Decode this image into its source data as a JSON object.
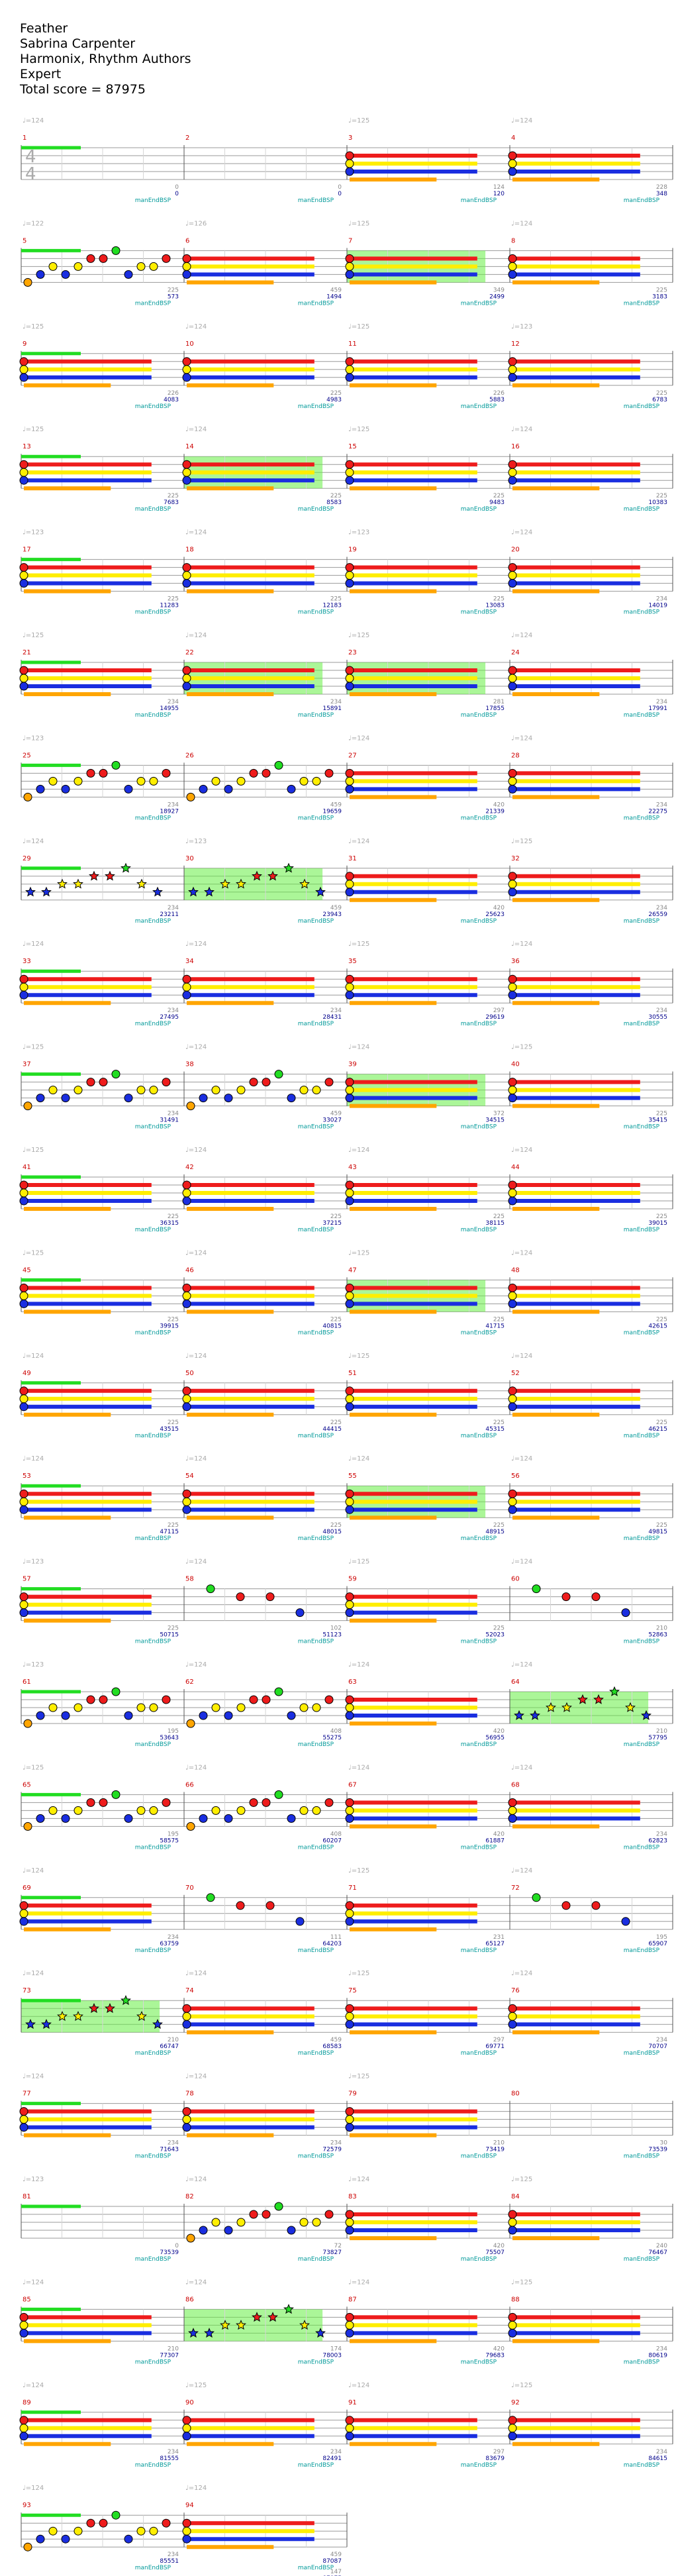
{
  "song": {
    "title": "Feather",
    "artist": "Sabrina Carpenter",
    "charter": "Harmonix, Rhythm Authors",
    "difficulty": "Expert",
    "total_score_label": "Total score = 87975"
  },
  "time_signature": {
    "numerator": "4",
    "denominator": "4"
  },
  "colors": {
    "green": "#22dd22",
    "red": "#ee1c1c",
    "yellow": "#ffee00",
    "blue": "#1a2ee0",
    "orange": "#ffa500",
    "star_power": "#66ee44",
    "measure_number": "#cc0000",
    "bpm_marker": "#aaaaaa",
    "score": "#00008b",
    "section": "#009999"
  },
  "legend": {
    "bpm_prefix": "♩=",
    "section_label": "manEndBSP"
  },
  "measures": [
    {
      "n": "1",
      "bpm": "124",
      "score": "0",
      "beat": "0",
      "sp": false,
      "pattern": "rest"
    },
    {
      "n": "2",
      "bpm": "",
      "score": "0",
      "beat": "0",
      "sp": false,
      "pattern": "rest"
    },
    {
      "n": "3",
      "bpm": "125",
      "score": "120",
      "beat": "124",
      "sp": false,
      "pattern": "sustain"
    },
    {
      "n": "4",
      "bpm": "124",
      "score": "348",
      "beat": "228",
      "sp": false,
      "pattern": "sustain"
    },
    {
      "n": "5",
      "bpm": "122",
      "score": "573",
      "beat": "225",
      "sp": false,
      "pattern": "riff"
    },
    {
      "n": "6",
      "bpm": "126",
      "score": "1494",
      "beat": "459",
      "sp": false,
      "pattern": "sustain"
    },
    {
      "n": "7",
      "bpm": "125",
      "score": "2499",
      "beat": "349",
      "sp": true,
      "pattern": "sustain"
    },
    {
      "n": "8",
      "bpm": "124",
      "score": "3183",
      "beat": "225",
      "sp": false,
      "pattern": "sustain"
    },
    {
      "n": "9",
      "bpm": "125",
      "score": "4083",
      "beat": "226",
      "sp": false,
      "pattern": "sustain"
    },
    {
      "n": "10",
      "bpm": "124",
      "score": "4983",
      "beat": "225",
      "sp": false,
      "pattern": "sustain"
    },
    {
      "n": "11",
      "bpm": "125",
      "score": "5883",
      "beat": "226",
      "sp": false,
      "pattern": "sustain"
    },
    {
      "n": "12",
      "bpm": "123",
      "score": "6783",
      "beat": "225",
      "sp": false,
      "pattern": "sustain"
    },
    {
      "n": "13",
      "bpm": "125",
      "score": "7683",
      "beat": "225",
      "sp": false,
      "pattern": "sustain"
    },
    {
      "n": "14",
      "bpm": "124",
      "score": "8583",
      "beat": "225",
      "sp": true,
      "pattern": "sustain"
    },
    {
      "n": "15",
      "bpm": "125",
      "score": "9483",
      "beat": "225",
      "sp": false,
      "pattern": "sustain"
    },
    {
      "n": "16",
      "bpm": "124",
      "score": "10383",
      "beat": "225",
      "sp": false,
      "pattern": "sustain"
    },
    {
      "n": "17",
      "bpm": "123",
      "score": "11283",
      "beat": "225",
      "sp": false,
      "pattern": "sustain"
    },
    {
      "n": "18",
      "bpm": "124",
      "score": "12183",
      "beat": "225",
      "sp": false,
      "pattern": "sustain"
    },
    {
      "n": "19",
      "bpm": "123",
      "score": "13083",
      "beat": "225",
      "sp": false,
      "pattern": "sustain"
    },
    {
      "n": "20",
      "bpm": "124",
      "score": "14019",
      "beat": "234",
      "sp": false,
      "pattern": "sustain"
    },
    {
      "n": "21",
      "bpm": "125",
      "score": "14955",
      "beat": "234",
      "sp": false,
      "pattern": "sustain"
    },
    {
      "n": "22",
      "bpm": "124",
      "score": "15891",
      "beat": "234",
      "sp": true,
      "pattern": "sustain"
    },
    {
      "n": "23",
      "bpm": "125",
      "score": "17855",
      "beat": "281",
      "sp": true,
      "pattern": "sustain"
    },
    {
      "n": "24",
      "bpm": "124",
      "score": "17991",
      "beat": "234",
      "sp": false,
      "pattern": "sustain"
    },
    {
      "n": "25",
      "bpm": "123",
      "score": "18927",
      "beat": "234",
      "sp": false,
      "pattern": "riff"
    },
    {
      "n": "26",
      "bpm": "",
      "score": "19659",
      "beat": "459",
      "sp": false,
      "pattern": "riff"
    },
    {
      "n": "27",
      "bpm": "124",
      "score": "21339",
      "beat": "420",
      "sp": false,
      "pattern": "sustain"
    },
    {
      "n": "28",
      "bpm": "124",
      "score": "22275",
      "beat": "234",
      "sp": false,
      "pattern": "sustain"
    },
    {
      "n": "29",
      "bpm": "124",
      "score": "23211",
      "beat": "234",
      "sp": false,
      "pattern": "star"
    },
    {
      "n": "30",
      "bpm": "123",
      "score": "23943",
      "beat": "459",
      "sp": true,
      "pattern": "star"
    },
    {
      "n": "31",
      "bpm": "124",
      "score": "25623",
      "beat": "420",
      "sp": false,
      "pattern": "sustain"
    },
    {
      "n": "32",
      "bpm": "125",
      "score": "26559",
      "beat": "234",
      "sp": false,
      "pattern": "sustain"
    },
    {
      "n": "33",
      "bpm": "124",
      "score": "27495",
      "beat": "234",
      "sp": false,
      "pattern": "sustain"
    },
    {
      "n": "34",
      "bpm": "124",
      "score": "28431",
      "beat": "234",
      "sp": false,
      "pattern": "sustain"
    },
    {
      "n": "35",
      "bpm": "125",
      "score": "29619",
      "beat": "297",
      "sp": false,
      "pattern": "sustain"
    },
    {
      "n": "36",
      "bpm": "124",
      "score": "30555",
      "beat": "234",
      "sp": false,
      "pattern": "sustain"
    },
    {
      "n": "37",
      "bpm": "125",
      "score": "31491",
      "beat": "234",
      "sp": false,
      "pattern": "riff"
    },
    {
      "n": "38",
      "bpm": "124",
      "score": "33027",
      "beat": "459",
      "sp": false,
      "pattern": "riff"
    },
    {
      "n": "39",
      "bpm": "124",
      "score": "34515",
      "beat": "372",
      "sp": true,
      "pattern": "sustain"
    },
    {
      "n": "40",
      "bpm": "125",
      "score": "35415",
      "beat": "225",
      "sp": false,
      "pattern": "sustain"
    },
    {
      "n": "41",
      "bpm": "125",
      "score": "36315",
      "beat": "225",
      "sp": false,
      "pattern": "sustain"
    },
    {
      "n": "42",
      "bpm": "124",
      "score": "37215",
      "beat": "225",
      "sp": false,
      "pattern": "sustain"
    },
    {
      "n": "43",
      "bpm": "124",
      "score": "38115",
      "beat": "225",
      "sp": false,
      "pattern": "sustain"
    },
    {
      "n": "44",
      "bpm": "124",
      "score": "39015",
      "beat": "225",
      "sp": false,
      "pattern": "sustain"
    },
    {
      "n": "45",
      "bpm": "125",
      "score": "39915",
      "beat": "225",
      "sp": false,
      "pattern": "sustain"
    },
    {
      "n": "46",
      "bpm": "124",
      "score": "40815",
      "beat": "225",
      "sp": false,
      "pattern": "sustain"
    },
    {
      "n": "47",
      "bpm": "125",
      "score": "41715",
      "beat": "225",
      "sp": true,
      "pattern": "sustain"
    },
    {
      "n": "48",
      "bpm": "124",
      "score": "42615",
      "beat": "225",
      "sp": false,
      "pattern": "sustain"
    },
    {
      "n": "49",
      "bpm": "124",
      "score": "43515",
      "beat": "225",
      "sp": false,
      "pattern": "sustain"
    },
    {
      "n": "50",
      "bpm": "124",
      "score": "44415",
      "beat": "225",
      "sp": false,
      "pattern": "sustain"
    },
    {
      "n": "51",
      "bpm": "125",
      "score": "45315",
      "beat": "225",
      "sp": false,
      "pattern": "sustain"
    },
    {
      "n": "52",
      "bpm": "124",
      "score": "46215",
      "beat": "225",
      "sp": false,
      "pattern": "sustain"
    },
    {
      "n": "53",
      "bpm": "124",
      "score": "47115",
      "beat": "225",
      "sp": false,
      "pattern": "sustain"
    },
    {
      "n": "54",
      "bpm": "124",
      "score": "48015",
      "beat": "225",
      "sp": false,
      "pattern": "sustain"
    },
    {
      "n": "55",
      "bpm": "124",
      "score": "48915",
      "beat": "225",
      "sp": true,
      "pattern": "sustain"
    },
    {
      "n": "56",
      "bpm": "124",
      "score": "49815",
      "beat": "225",
      "sp": false,
      "pattern": "sustain"
    },
    {
      "n": "57",
      "bpm": "123",
      "score": "50715",
      "beat": "225",
      "sp": false,
      "pattern": "sustain"
    },
    {
      "n": "58",
      "bpm": "124",
      "score": "51123",
      "beat": "102",
      "sp": false,
      "pattern": "sparse"
    },
    {
      "n": "59",
      "bpm": "125",
      "score": "52023",
      "beat": "225",
      "sp": false,
      "pattern": "sustain"
    },
    {
      "n": "60",
      "bpm": "124",
      "score": "52863",
      "beat": "210",
      "sp": false,
      "pattern": "sparse"
    },
    {
      "n": "61",
      "bpm": "123",
      "score": "53643",
      "beat": "195",
      "sp": false,
      "pattern": "riff"
    },
    {
      "n": "62",
      "bpm": "124",
      "score": "55275",
      "beat": "408",
      "sp": false,
      "pattern": "riff"
    },
    {
      "n": "63",
      "bpm": "124",
      "score": "56955",
      "beat": "420",
      "sp": false,
      "pattern": "sustain"
    },
    {
      "n": "64",
      "bpm": "124",
      "score": "57795",
      "beat": "210",
      "sp": true,
      "pattern": "star"
    },
    {
      "n": "65",
      "bpm": "125",
      "score": "58575",
      "beat": "195",
      "sp": false,
      "pattern": "riff"
    },
    {
      "n": "66",
      "bpm": "124",
      "score": "60207",
      "beat": "408",
      "sp": false,
      "pattern": "riff"
    },
    {
      "n": "67",
      "bpm": "124",
      "score": "61887",
      "beat": "420",
      "sp": false,
      "pattern": "sustain"
    },
    {
      "n": "68",
      "bpm": "124",
      "score": "62823",
      "beat": "234",
      "sp": false,
      "pattern": "sustain"
    },
    {
      "n": "69",
      "bpm": "124",
      "score": "63759",
      "beat": "234",
      "sp": false,
      "pattern": "sustain"
    },
    {
      "n": "70",
      "bpm": "",
      "score": "64203",
      "beat": "111",
      "sp": false,
      "pattern": "sparse"
    },
    {
      "n": "71",
      "bpm": "125",
      "score": "65127",
      "beat": "231",
      "sp": false,
      "pattern": "sustain"
    },
    {
      "n": "72",
      "bpm": "124",
      "score": "65907",
      "beat": "195",
      "sp": false,
      "pattern": "sparse"
    },
    {
      "n": "73",
      "bpm": "124",
      "score": "66747",
      "beat": "210",
      "sp": true,
      "pattern": "star"
    },
    {
      "n": "74",
      "bpm": "124",
      "score": "68583",
      "beat": "459",
      "sp": false,
      "pattern": "sustain"
    },
    {
      "n": "75",
      "bpm": "125",
      "score": "69771",
      "beat": "297",
      "sp": false,
      "pattern": "sustain"
    },
    {
      "n": "76",
      "bpm": "124",
      "score": "70707",
      "beat": "234",
      "sp": false,
      "pattern": "sustain"
    },
    {
      "n": "77",
      "bpm": "124",
      "score": "71643",
      "beat": "234",
      "sp": false,
      "pattern": "sustain"
    },
    {
      "n": "78",
      "bpm": "124",
      "score": "72579",
      "beat": "234",
      "sp": false,
      "pattern": "sustain"
    },
    {
      "n": "79",
      "bpm": "125",
      "score": "73419",
      "beat": "210",
      "sp": false,
      "pattern": "sustain"
    },
    {
      "n": "80",
      "bpm": "",
      "score": "73539",
      "beat": "30",
      "sp": false,
      "pattern": "rest"
    },
    {
      "n": "81",
      "bpm": "123",
      "score": "73539",
      "beat": "0",
      "sp": false,
      "pattern": "rest"
    },
    {
      "n": "82",
      "bpm": "124",
      "score": "73827",
      "beat": "72",
      "sp": false,
      "pattern": "riff"
    },
    {
      "n": "83",
      "bpm": "124",
      "score": "75507",
      "beat": "420",
      "sp": false,
      "pattern": "sustain"
    },
    {
      "n": "84",
      "bpm": "125",
      "score": "76467",
      "beat": "240",
      "sp": false,
      "pattern": "sustain"
    },
    {
      "n": "85",
      "bpm": "124",
      "score": "77307",
      "beat": "210",
      "sp": false,
      "pattern": "sustain"
    },
    {
      "n": "86",
      "bpm": "124",
      "score": "78003",
      "beat": "174",
      "sp": true,
      "pattern": "star"
    },
    {
      "n": "87",
      "bpm": "124",
      "score": "79683",
      "beat": "420",
      "sp": false,
      "pattern": "sustain"
    },
    {
      "n": "88",
      "bpm": "125",
      "score": "80619",
      "beat": "234",
      "sp": false,
      "pattern": "sustain"
    },
    {
      "n": "89",
      "bpm": "124",
      "score": "81555",
      "beat": "234",
      "sp": false,
      "pattern": "sustain"
    },
    {
      "n": "90",
      "bpm": "125",
      "score": "82491",
      "beat": "234",
      "sp": false,
      "pattern": "sustain"
    },
    {
      "n": "91",
      "bpm": "124",
      "score": "83679",
      "beat": "297",
      "sp": false,
      "pattern": "sustain"
    },
    {
      "n": "92",
      "bpm": "125",
      "score": "84615",
      "beat": "234",
      "sp": false,
      "pattern": "sustain"
    },
    {
      "n": "93",
      "bpm": "124",
      "score": "85551",
      "beat": "234",
      "sp": false,
      "pattern": "riff"
    },
    {
      "n": "94",
      "bpm": "124",
      "score": "87087",
      "beat": "459",
      "sp": false,
      "pattern": "sustain"
    }
  ],
  "final_score": "87975",
  "final_beat": "147"
}
